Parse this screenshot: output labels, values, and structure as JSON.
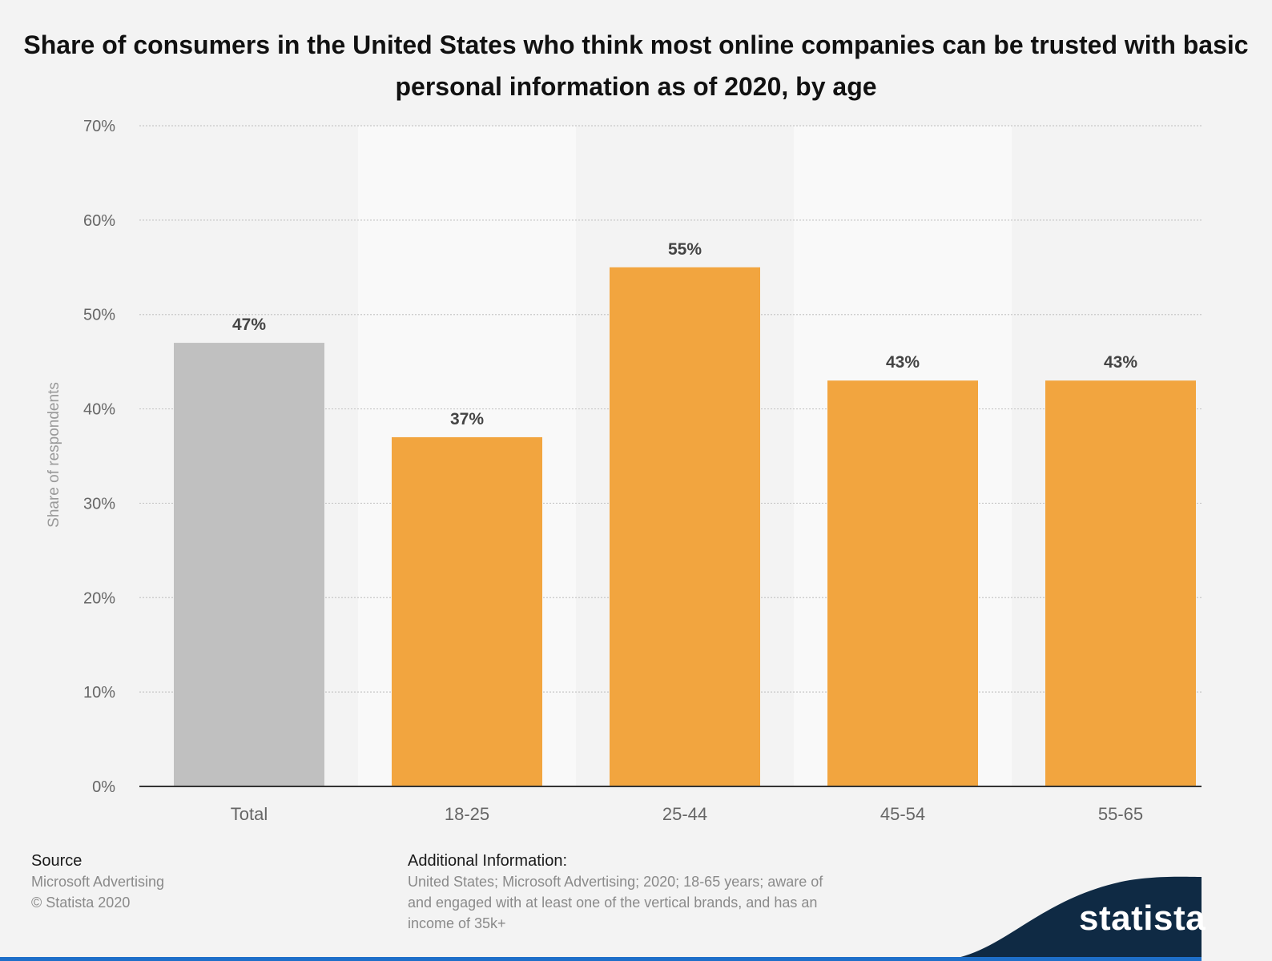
{
  "chart_data": {
    "type": "bar",
    "title": "Share of consumers in the United States who think most online companies can be trusted with basic personal information as of 2020, by age",
    "ylabel": "Share of respondents",
    "ylim": [
      0,
      70
    ],
    "yticks": [
      "0%",
      "10%",
      "20%",
      "30%",
      "40%",
      "50%",
      "60%",
      "70%"
    ],
    "categories": [
      "Total",
      "18-25",
      "25-44",
      "45-54",
      "55-65"
    ],
    "values": [
      47,
      37,
      55,
      43,
      43
    ],
    "value_labels": [
      "47%",
      "37%",
      "55%",
      "43%",
      "43%"
    ],
    "bar_colors": [
      "#c0c0c0",
      "#f2a53f",
      "#f2a53f",
      "#f2a53f",
      "#f2a53f"
    ],
    "grid": true
  },
  "footer": {
    "source_heading": "Source",
    "source_lines": [
      "Microsoft Advertising",
      "© Statista 2020"
    ],
    "info_heading": "Additional Information:",
    "info_lines": [
      "United States; Microsoft Advertising; 2020; 18-65 years; aware of",
      "and engaged with at least one of the vertical brands, and has an",
      "income of 35k+"
    ]
  },
  "brand": {
    "name": "statista",
    "color": "#0f2a44"
  }
}
